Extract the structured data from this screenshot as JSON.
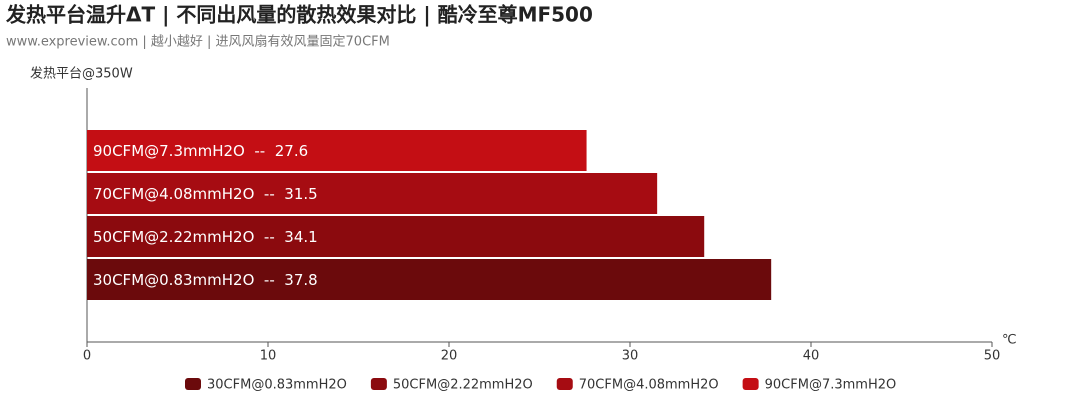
{
  "chart_data": {
    "type": "bar",
    "orientation": "horizontal",
    "title": "发热平台温升ΔT | 不同出风量的散热效果对比 | 酷冷至尊MF500",
    "subtitle": "www.expreview.com | 越小越好 | 进风风扇有效风量固定70CFM",
    "categories": [
      "发热平台@350W"
    ],
    "xlabel": "℃",
    "series": [
      {
        "name": "30CFM@0.83mmH2O",
        "color": "#6b0a0c",
        "values": [
          37.8
        ],
        "value_labels": [
          "30CFM@0.83mmH2O  --  37.8"
        ]
      },
      {
        "name": "50CFM@2.22mmH2O",
        "color": "#8b0a0e",
        "values": [
          34.1
        ],
        "value_labels": [
          "50CFM@2.22mmH2O  --  34.1"
        ]
      },
      {
        "name": "70CFM@4.08mmH2O",
        "color": "#a60c12",
        "values": [
          31.5
        ],
        "value_labels": [
          "70CFM@4.08mmH2O  --  31.5"
        ]
      },
      {
        "name": "90CFM@7.3mmH2O",
        "color": "#c40e14",
        "values": [
          27.6
        ],
        "value_labels": [
          "90CFM@7.3mmH2O  --  27.6"
        ]
      }
    ],
    "xlim": [
      0,
      50
    ],
    "xticks": [
      0,
      10,
      20,
      30,
      40,
      50
    ],
    "grid": false
  }
}
